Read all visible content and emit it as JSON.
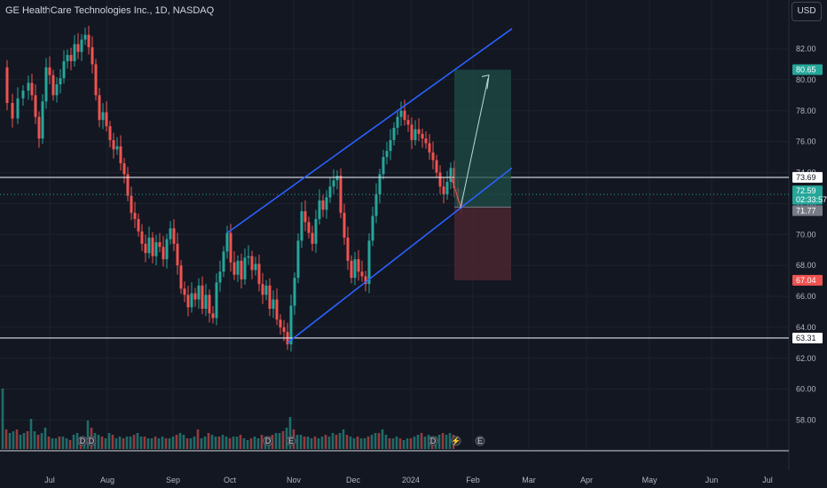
{
  "header": {
    "title": "GE HealthCare Technologies Inc., 1D, NASDAQ",
    "currency": "USD"
  },
  "colors": {
    "background": "#131722",
    "up": "#26a69a",
    "down": "#ef5350",
    "channel": "#2962ff",
    "hline": "#e0e3eb",
    "target_zone": "#1f4d47",
    "stop_zone": "#4a2630"
  },
  "chart_data": {
    "type": "candlestick",
    "y_ticks": [
      "82.00",
      "80.00",
      "78.00",
      "76.00",
      "74.00",
      "72.00",
      "70.00",
      "68.00",
      "66.00",
      "64.00",
      "62.00",
      "60.00",
      "58.00"
    ],
    "x_ticks": [
      "Jul",
      "Aug",
      "Sep",
      "Oct",
      "Nov",
      "Dec",
      "2024",
      "Feb",
      "Mar",
      "Apr",
      "May",
      "Jun",
      "Jul"
    ],
    "ylim": [
      56,
      84
    ],
    "price_labels": [
      {
        "text": "80.65",
        "value": 80.65,
        "kind": "target"
      },
      {
        "text": "73.69",
        "value": 73.69,
        "kind": "line"
      },
      {
        "text": "72.59",
        "value": 72.59,
        "kind": "last"
      },
      {
        "text": "02:33:57",
        "value": 72.59,
        "kind": "countdown"
      },
      {
        "text": "71.77",
        "value": 71.77,
        "kind": "entry"
      },
      {
        "text": "67.04",
        "value": 67.04,
        "kind": "stop"
      },
      {
        "text": "63.31",
        "value": 63.31,
        "kind": "line"
      }
    ],
    "horizontal_lines": [
      73.69,
      63.31
    ],
    "last_price": 72.59,
    "entry_price": 71.77,
    "target_price": 80.65,
    "stop_price": 67.04,
    "close_path": [
      [
        0,
        80.8
      ],
      [
        8,
        78.5
      ],
      [
        14,
        77.5
      ],
      [
        20,
        78.8
      ],
      [
        26,
        79.3
      ],
      [
        32,
        79.8
      ],
      [
        36,
        79.0
      ],
      [
        40,
        77.6
      ],
      [
        44,
        76.2
      ],
      [
        48,
        78.6
      ],
      [
        52,
        80.8
      ],
      [
        56,
        80.3
      ],
      [
        60,
        79.0
      ],
      [
        64,
        79.7
      ],
      [
        68,
        80.1
      ],
      [
        72,
        81.2
      ],
      [
        76,
        81.6
      ],
      [
        80,
        81.2
      ],
      [
        84,
        82.3
      ],
      [
        88,
        81.8
      ],
      [
        92,
        82.6
      ],
      [
        96,
        82.9
      ],
      [
        100,
        82.1
      ],
      [
        104,
        81.0
      ],
      [
        108,
        79.0
      ],
      [
        112,
        77.4
      ],
      [
        116,
        77.9
      ],
      [
        120,
        77.0
      ],
      [
        124,
        76.1
      ],
      [
        128,
        75.5
      ],
      [
        132,
        75.7
      ],
      [
        136,
        74.6
      ],
      [
        140,
        73.9
      ],
      [
        144,
        72.5
      ],
      [
        148,
        71.4
      ],
      [
        152,
        71.0
      ],
      [
        156,
        70.2
      ],
      [
        160,
        69.4
      ],
      [
        164,
        68.8
      ],
      [
        168,
        69.8
      ],
      [
        172,
        68.6
      ],
      [
        176,
        69.5
      ],
      [
        180,
        69.2
      ],
      [
        184,
        68.4
      ],
      [
        188,
        69.7
      ],
      [
        192,
        70.4
      ],
      [
        196,
        69.4
      ],
      [
        200,
        68.0
      ],
      [
        204,
        66.5
      ],
      [
        208,
        66.1
      ],
      [
        212,
        65.3
      ],
      [
        216,
        66.2
      ],
      [
        220,
        65.8
      ],
      [
        224,
        66.7
      ],
      [
        228,
        65.2
      ],
      [
        232,
        66.1
      ],
      [
        236,
        64.9
      ],
      [
        240,
        64.6
      ],
      [
        244,
        66.9
      ],
      [
        248,
        67.6
      ],
      [
        252,
        68.9
      ],
      [
        256,
        70.1
      ],
      [
        260,
        68.2
      ],
      [
        264,
        67.4
      ],
      [
        268,
        68.3
      ],
      [
        272,
        67.1
      ],
      [
        276,
        68.5
      ],
      [
        280,
        68.6
      ],
      [
        284,
        67.7
      ],
      [
        288,
        68.1
      ],
      [
        292,
        66.8
      ],
      [
        296,
        66.1
      ],
      [
        300,
        66.7
      ],
      [
        304,
        65.2
      ],
      [
        308,
        65.8
      ],
      [
        312,
        64.5
      ],
      [
        316,
        64.0
      ],
      [
        320,
        63.7
      ],
      [
        324,
        62.9
      ],
      [
        328,
        65.4
      ],
      [
        332,
        67.2
      ],
      [
        336,
        69.6
      ],
      [
        340,
        71.5
      ],
      [
        344,
        70.8
      ],
      [
        348,
        70.1
      ],
      [
        352,
        69.4
      ],
      [
        356,
        71.0
      ],
      [
        360,
        72.2
      ],
      [
        364,
        71.6
      ],
      [
        368,
        72.4
      ],
      [
        372,
        73.1
      ],
      [
        376,
        73.5
      ],
      [
        380,
        73.8
      ],
      [
        384,
        71.4
      ],
      [
        388,
        69.8
      ],
      [
        392,
        68.3
      ],
      [
        396,
        67.2
      ],
      [
        400,
        68.4
      ],
      [
        404,
        67.6
      ],
      [
        408,
        67.3
      ],
      [
        412,
        66.8
      ],
      [
        416,
        69.6
      ],
      [
        420,
        71.2
      ],
      [
        424,
        72.6
      ],
      [
        428,
        73.9
      ],
      [
        432,
        75.0
      ],
      [
        436,
        75.4
      ],
      [
        440,
        76.1
      ],
      [
        444,
        76.9
      ],
      [
        448,
        77.6
      ],
      [
        452,
        78.0
      ],
      [
        456,
        77.4
      ],
      [
        460,
        77.1
      ],
      [
        464,
        76.1
      ],
      [
        468,
        76.8
      ],
      [
        472,
        76.5
      ],
      [
        476,
        76.2
      ],
      [
        480,
        75.9
      ],
      [
        484,
        75.3
      ],
      [
        488,
        74.8
      ],
      [
        492,
        74.0
      ],
      [
        496,
        73.1
      ],
      [
        500,
        72.6
      ],
      [
        504,
        73.4
      ],
      [
        508,
        74.3
      ],
      [
        512,
        73.0
      ],
      [
        516,
        72.2
      ],
      [
        520,
        71.8
      ]
    ],
    "volume_bars": [
      [
        3,
        3.4
      ],
      [
        7,
        1.1
      ],
      [
        11,
        0.9
      ],
      [
        15,
        1.0
      ],
      [
        19,
        1.1
      ],
      [
        23,
        0.8
      ],
      [
        27,
        0.9
      ],
      [
        31,
        1.0
      ],
      [
        35,
        1.7
      ],
      [
        39,
        1.0
      ],
      [
        43,
        0.8
      ],
      [
        47,
        0.9
      ],
      [
        51,
        1.2
      ],
      [
        55,
        0.7
      ],
      [
        59,
        0.6
      ],
      [
        63,
        0.6
      ],
      [
        67,
        0.7
      ],
      [
        71,
        0.7
      ],
      [
        75,
        0.6
      ],
      [
        79,
        0.5
      ],
      [
        83,
        0.8
      ],
      [
        87,
        0.9
      ],
      [
        91,
        0.6
      ],
      [
        95,
        0.7
      ],
      [
        99,
        1.6
      ],
      [
        103,
        1.2
      ],
      [
        107,
        0.9
      ],
      [
        111,
        0.8
      ],
      [
        115,
        0.7
      ],
      [
        119,
        0.6
      ],
      [
        123,
        0.9
      ],
      [
        127,
        0.8
      ],
      [
        131,
        0.6
      ],
      [
        135,
        0.7
      ],
      [
        139,
        0.6
      ],
      [
        143,
        0.7
      ],
      [
        147,
        0.7
      ],
      [
        151,
        0.8
      ],
      [
        155,
        0.9
      ],
      [
        159,
        0.7
      ],
      [
        163,
        0.7
      ],
      [
        167,
        0.6
      ],
      [
        171,
        0.6
      ],
      [
        175,
        0.7
      ],
      [
        179,
        0.6
      ],
      [
        183,
        0.7
      ],
      [
        187,
        0.6
      ],
      [
        191,
        0.6
      ],
      [
        195,
        0.7
      ],
      [
        199,
        0.8
      ],
      [
        203,
        0.9
      ],
      [
        207,
        0.8
      ],
      [
        211,
        0.6
      ],
      [
        215,
        0.6
      ],
      [
        219,
        0.7
      ],
      [
        223,
        1.1
      ],
      [
        227,
        0.6
      ],
      [
        231,
        0.7
      ],
      [
        235,
        0.9
      ],
      [
        239,
        0.8
      ],
      [
        243,
        0.7
      ],
      [
        247,
        0.7
      ],
      [
        251,
        0.8
      ],
      [
        255,
        0.7
      ],
      [
        259,
        0.6
      ],
      [
        263,
        0.7
      ],
      [
        267,
        0.7
      ],
      [
        271,
        0.8
      ],
      [
        275,
        0.6
      ],
      [
        279,
        0.5
      ],
      [
        283,
        0.6
      ],
      [
        287,
        0.7
      ],
      [
        291,
        0.6
      ],
      [
        295,
        0.8
      ],
      [
        299,
        0.7
      ],
      [
        303,
        0.6
      ],
      [
        307,
        0.8
      ],
      [
        311,
        0.9
      ],
      [
        315,
        0.9
      ],
      [
        319,
        1.0
      ],
      [
        323,
        1.2
      ],
      [
        327,
        1.8
      ],
      [
        331,
        1.1
      ],
      [
        335,
        0.8
      ],
      [
        339,
        0.8
      ],
      [
        343,
        0.7
      ],
      [
        347,
        0.7
      ],
      [
        351,
        0.6
      ],
      [
        355,
        0.7
      ],
      [
        359,
        0.6
      ],
      [
        363,
        0.7
      ],
      [
        367,
        0.8
      ],
      [
        371,
        0.7
      ],
      [
        375,
        0.9
      ],
      [
        379,
        0.8
      ],
      [
        383,
        0.9
      ],
      [
        387,
        1.1
      ],
      [
        391,
        0.8
      ],
      [
        395,
        0.7
      ],
      [
        399,
        0.6
      ],
      [
        403,
        0.7
      ],
      [
        407,
        0.6
      ],
      [
        411,
        0.6
      ],
      [
        415,
        0.7
      ],
      [
        419,
        0.8
      ],
      [
        423,
        0.9
      ],
      [
        427,
        0.9
      ],
      [
        431,
        1.1
      ],
      [
        435,
        0.8
      ],
      [
        439,
        0.6
      ],
      [
        443,
        0.6
      ],
      [
        447,
        0.7
      ],
      [
        451,
        0.6
      ],
      [
        455,
        0.5
      ],
      [
        459,
        0.6
      ],
      [
        463,
        0.6
      ],
      [
        467,
        0.7
      ],
      [
        471,
        0.8
      ],
      [
        475,
        0.9
      ],
      [
        479,
        0.7
      ],
      [
        483,
        0.8
      ],
      [
        487,
        0.6
      ],
      [
        491,
        0.7
      ],
      [
        495,
        0.8
      ],
      [
        499,
        0.9
      ],
      [
        503,
        0.8
      ],
      [
        507,
        0.9
      ],
      [
        511,
        0.8
      ]
    ]
  }
}
